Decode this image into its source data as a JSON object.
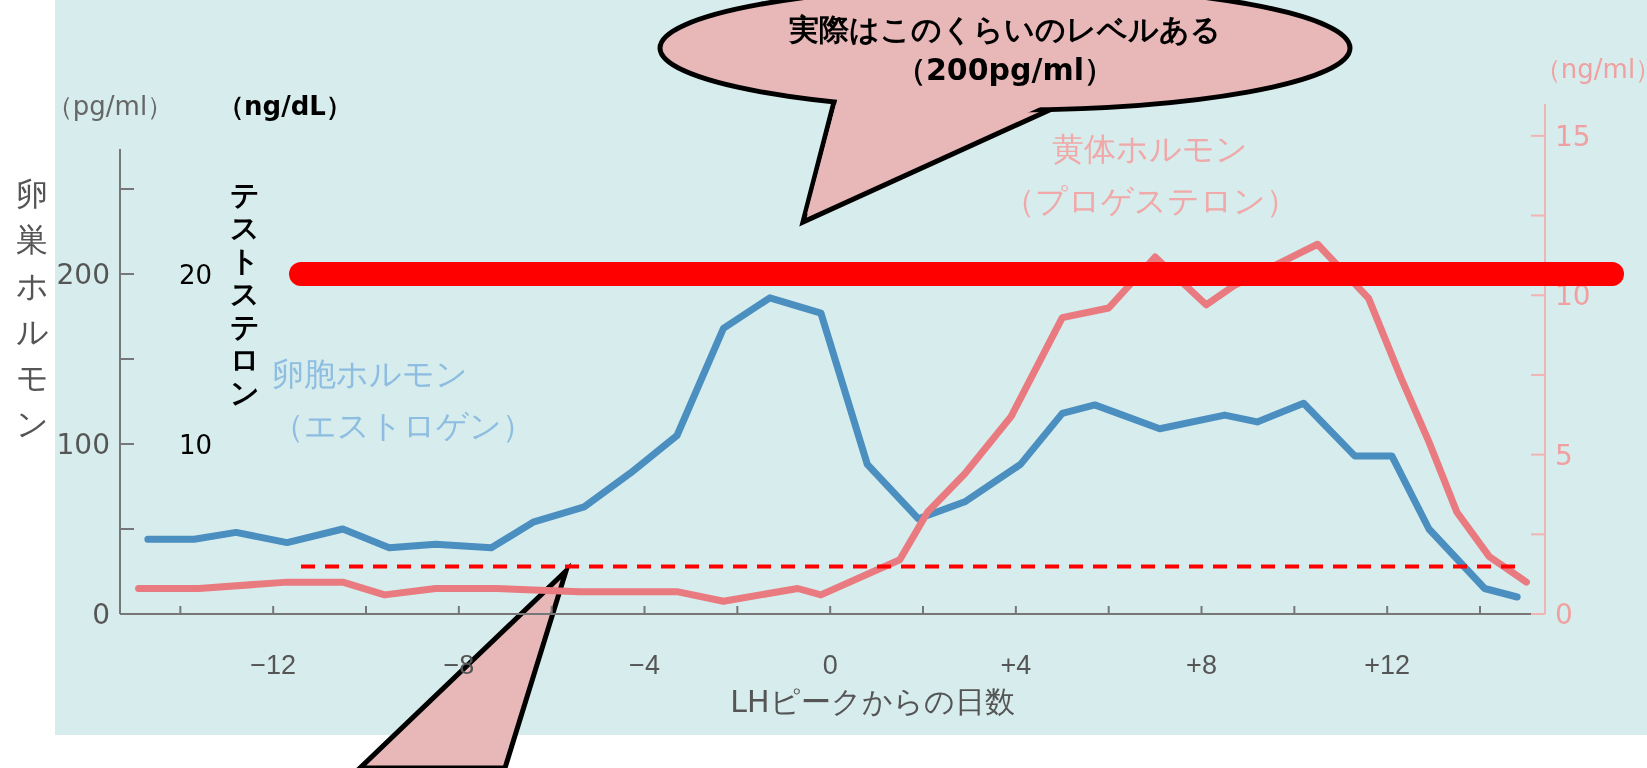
{
  "chart_data": {
    "type": "line",
    "xlabel": "LHピークからの日数",
    "ylabel": "卵巣ホルモン",
    "y3label": "テストステロン",
    "xlim": [
      -15.3,
      15.4
    ],
    "xticks": [
      {
        "value": -14,
        "label": null
      },
      {
        "value": -12,
        "label": "−12"
      },
      {
        "value": -10,
        "label": null
      },
      {
        "value": -8,
        "label": "−8"
      },
      {
        "value": -6,
        "label": null
      },
      {
        "value": -4,
        "label": "−4"
      },
      {
        "value": -2,
        "label": null
      },
      {
        "value": 0,
        "label": "0"
      },
      {
        "value": 2,
        "label": null
      },
      {
        "value": 4,
        "label": "+4"
      },
      {
        "value": 6,
        "label": null
      },
      {
        "value": 8,
        "label": "+8"
      },
      {
        "value": 10,
        "label": null
      },
      {
        "value": 12,
        "label": "+12"
      },
      {
        "value": 14,
        "label": null
      }
    ],
    "ylim": [
      0,
      300
    ],
    "yticks": [
      0,
      {
        "value": 50,
        "label": null
      },
      100,
      {
        "value": 150,
        "label": null
      },
      200,
      {
        "value": 250,
        "label": null
      }
    ],
    "y2lim": [
      0,
      16
    ],
    "y2ticks": [
      0,
      {
        "value": 2.5,
        "label": null
      },
      5,
      {
        "value": 7.5,
        "label": null
      },
      10,
      {
        "value": 12.5,
        "label": null
      },
      15
    ],
    "y3lim": [
      0,
      30
    ],
    "y3ticks": [
      10,
      20
    ],
    "series": [
      {
        "name": "卵胞ホルモン（エストロゲン）",
        "color": "#4a8fc0",
        "x": [
          -14.7,
          -13.7,
          -12.8,
          -11.7,
          -10.5,
          -9.5,
          -8.5,
          -7.3,
          -6.4,
          -5.3,
          -4.3,
          -3.3,
          -2.3,
          -1.3,
          -0.2,
          0.8,
          1.9,
          2.9,
          4.1,
          5.0,
          5.7,
          7.1,
          8.5,
          9.2,
          10.2,
          11.3,
          12.1,
          12.9,
          14.1,
          14.8
        ],
        "values": [
          44,
          44,
          48,
          42,
          50,
          39,
          41,
          39,
          54,
          63,
          83,
          105,
          168,
          186,
          177,
          88,
          56,
          66,
          88,
          118,
          123,
          109,
          117,
          113,
          124,
          93,
          93,
          50,
          15,
          10
        ]
      },
      {
        "name": "黄体ホルモン（プロゲステロン）",
        "color": "#e87a80",
        "axis": "y2",
        "x": [
          -14.9,
          -13.6,
          -11.7,
          -10.5,
          -9.6,
          -8.5,
          -7.2,
          -5.4,
          -3.3,
          -2.3,
          -0.7,
          -0.2,
          1.5,
          2.1,
          2.9,
          3.9,
          5.0,
          6.0,
          7.0,
          8.1,
          8.7,
          10.5,
          11.6,
          12.3,
          12.9,
          13.5,
          14.2,
          15.0
        ],
        "values": [
          0.8,
          0.8,
          1.0,
          1.0,
          0.6,
          0.8,
          0.8,
          0.7,
          0.7,
          0.4,
          0.8,
          0.6,
          1.7,
          3.2,
          4.4,
          6.2,
          9.3,
          9.6,
          11.2,
          9.7,
          10.3,
          11.6,
          9.9,
          7.4,
          5.4,
          3.2,
          1.8,
          1.0
        ]
      }
    ],
    "ref_lines": [
      {
        "axis": "y",
        "value": 200,
        "color": "#ff0000",
        "line_style": "solid"
      },
      {
        "axis": "y",
        "value": 28,
        "color": "#ff0000",
        "line_style": "dashed"
      }
    ],
    "annotations": [
      "（pg/ml）",
      "（ng/dL）",
      "（ng/ml）",
      "実際はこのくらいのレベルある（200pg/ml）"
    ],
    "legend": false,
    "marker": "none",
    "line_style": "solid"
  }
}
